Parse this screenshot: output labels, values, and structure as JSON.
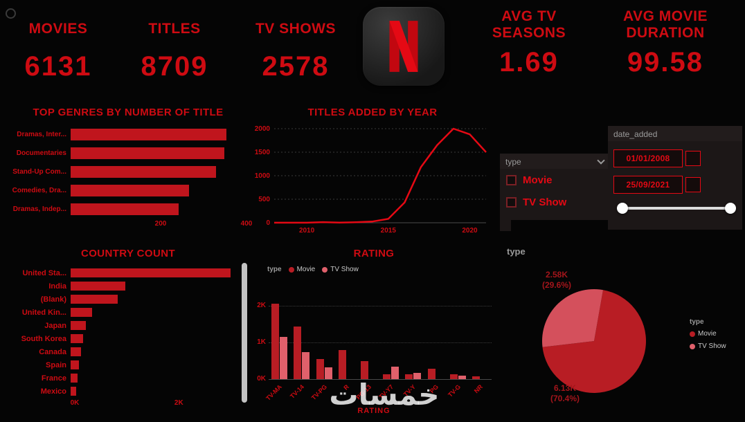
{
  "colors": {
    "background": "#050505",
    "heading_red": "#ce0b12",
    "bright_red": "#e50914",
    "bar_red": "#c0151d",
    "movie": "#b81d24",
    "tv_show": "#e0606b",
    "pie_tv": "#d4505c",
    "grid": "#3a3a3a",
    "muted": "#9a9a9a",
    "legend_text": "#c9c9c9",
    "data_label": "#a4151b"
  },
  "kpis": [
    {
      "label": "MOVIES",
      "value": "6131"
    },
    {
      "label": "TITLES",
      "value": "8709"
    },
    {
      "label": "TV SHOWS",
      "value": "2578"
    },
    {
      "label": "AVG TV SEASONS",
      "value": "1.69"
    },
    {
      "label": "AVG MOVIE DURATION",
      "value": "99.58"
    }
  ],
  "logo": {
    "name": "netflix-logo"
  },
  "slicers": {
    "type": {
      "header": "type",
      "options": [
        {
          "label": "Movie",
          "checked": false
        },
        {
          "label": "TV Show",
          "checked": false
        }
      ]
    },
    "date_added": {
      "header": "date_added",
      "start_date": "01/01/2008",
      "end_date": "25/09/2021"
    }
  },
  "watermark": "خمسات",
  "chart_data": [
    {
      "type": "bar",
      "orientation": "horizontal",
      "title": "TOP GENRES BY NUMBER OF TITLE",
      "categories": [
        "Dramas, Inter...",
        "Documentaries",
        "Stand-Up Com...",
        "Comedies, Dra...",
        "Dramas, Indep..."
      ],
      "values": [
        355,
        350,
        330,
        270,
        245
      ],
      "xlim": [
        0,
        400
      ],
      "xticks": [
        200,
        400
      ],
      "xtick_labels": [
        "200",
        "400"
      ]
    },
    {
      "type": "line",
      "title": "TITLES ADDED BY YEAR",
      "x": [
        2008,
        2009,
        2010,
        2011,
        2012,
        2013,
        2014,
        2015,
        2016,
        2017,
        2018,
        2019,
        2020,
        2021
      ],
      "values": [
        2,
        2,
        1,
        13,
        3,
        11,
        25,
        82,
        430,
        1180,
        1650,
        2000,
        1880,
        1500
      ],
      "ylim": [
        0,
        2000
      ],
      "yticks": [
        0,
        500,
        1000,
        1500,
        2000
      ],
      "ytick_labels": [
        "0",
        "500",
        "1000",
        "1500",
        "2000"
      ],
      "xticks": [
        2010,
        2015,
        2020
      ],
      "xtick_labels": [
        "2010",
        "2015",
        "2020"
      ]
    },
    {
      "type": "bar",
      "orientation": "horizontal",
      "title": "COUNTRY COUNT",
      "categories": [
        "United Sta...",
        "India",
        "(Blank)",
        "United Kin...",
        "Japan",
        "South Korea",
        "Canada",
        "Spain",
        "France",
        "Mexico"
      ],
      "values": [
        3000,
        1030,
        880,
        400,
        290,
        230,
        190,
        150,
        130,
        100
      ],
      "xlim": [
        0,
        3300
      ],
      "xticks": [
        0,
        2000
      ],
      "xtick_labels": [
        "0K",
        "2K"
      ]
    },
    {
      "type": "bar",
      "title": "RATING",
      "xlabel": "RATING",
      "legend_title": "type",
      "categories": [
        "TV-MA",
        "TV-14",
        "TV-PG",
        "R",
        "PG-13",
        "TV-Y7",
        "TV-Y",
        "PG",
        "TV-G",
        "NR"
      ],
      "series": [
        {
          "name": "Movie",
          "values": [
            2060,
            1430,
            540,
            800,
            490,
            140,
            130,
            290,
            125,
            80
          ]
        },
        {
          "name": "TV Show",
          "values": [
            1145,
            735,
            325,
            0,
            0,
            335,
            175,
            0,
            95,
            0
          ]
        }
      ],
      "ylim": [
        0,
        2200
      ],
      "yticks": [
        0,
        1000,
        2000
      ],
      "ytick_labels": [
        "0K",
        "1K",
        "2K"
      ]
    },
    {
      "type": "pie",
      "title": "type",
      "legend_title": "type",
      "start_angle": 10,
      "slices": [
        {
          "label": "Movie",
          "value": 6130,
          "value_label": "6.13K",
          "pct_label": "(70.4%)"
        },
        {
          "label": "TV Show",
          "value": 2580,
          "value_label": "2.58K",
          "pct_label": "(29.6%)"
        }
      ]
    }
  ]
}
